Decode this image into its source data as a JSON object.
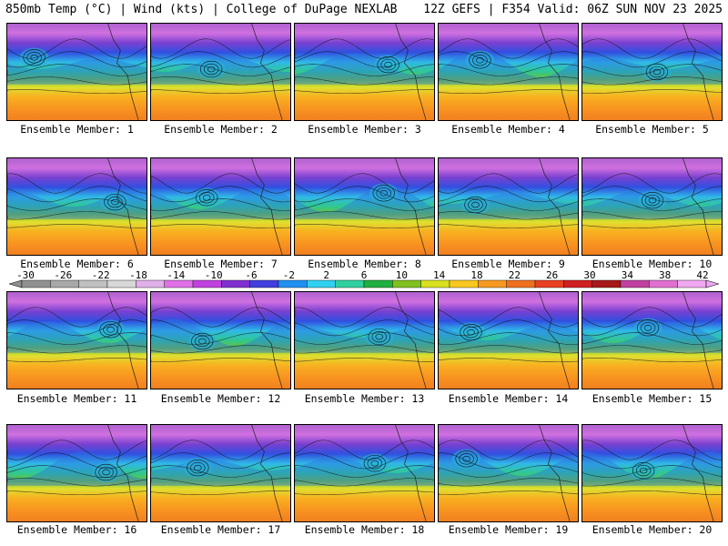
{
  "header": {
    "left": "850mb Temp (°C) | Wind (kts) | College of DuPage NEXLAB",
    "right": "12Z GEFS | F354 Valid: 06Z SUN NOV 23 2025"
  },
  "colorbar": {
    "ticks": [
      "-30",
      "-26",
      "-22",
      "-18",
      "-14",
      "-10",
      "-6",
      "-2",
      "2",
      "6",
      "10",
      "14",
      "18",
      "22",
      "26",
      "30",
      "34",
      "38",
      "42"
    ],
    "colors": [
      "#909090",
      "#a8a8a8",
      "#c0c0c0",
      "#d8d8d8",
      "#e0b0e8",
      "#e070e8",
      "#c040e0",
      "#8030d0",
      "#4040e0",
      "#2090f0",
      "#30d0f0",
      "#30d0a0",
      "#20b040",
      "#80c020",
      "#d8e020",
      "#f8c820",
      "#f89820",
      "#f07020",
      "#e84020",
      "#d02020",
      "#a81818",
      "#c040a0",
      "#e070d0",
      "#f0a8f0"
    ]
  },
  "members": [
    {
      "label": "Ensemble Member: 1"
    },
    {
      "label": "Ensemble Member: 2"
    },
    {
      "label": "Ensemble Member: 3"
    },
    {
      "label": "Ensemble Member: 4"
    },
    {
      "label": "Ensemble Member: 5"
    },
    {
      "label": "Ensemble Member: 6"
    },
    {
      "label": "Ensemble Member: 7"
    },
    {
      "label": "Ensemble Member: 8"
    },
    {
      "label": "Ensemble Member: 9"
    },
    {
      "label": "Ensemble Member: 10"
    },
    {
      "label": "Ensemble Member: 11"
    },
    {
      "label": "Ensemble Member: 12"
    },
    {
      "label": "Ensemble Member: 13"
    },
    {
      "label": "Ensemble Member: 14"
    },
    {
      "label": "Ensemble Member: 15"
    },
    {
      "label": "Ensemble Member: 16"
    },
    {
      "label": "Ensemble Member: 17"
    },
    {
      "label": "Ensemble Member: 18"
    },
    {
      "label": "Ensemble Member: 19"
    },
    {
      "label": "Ensemble Member: 20"
    }
  ]
}
